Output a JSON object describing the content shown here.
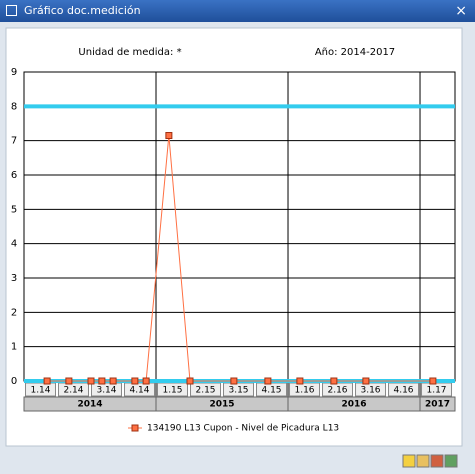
{
  "window": {
    "title": "Gráfico doc.medición",
    "close": "×"
  },
  "chart_data": {
    "type": "line",
    "header": [
      "Unidad de medida: *",
      "Año: 2014-2017"
    ],
    "series": [
      {
        "name": "134190  L13  Cupon - Nivel de Picadura L13",
        "color": "#ff7043",
        "x": [
          0.7,
          1.36,
          2.03,
          2.36,
          2.7,
          3.36,
          3.7,
          4.39,
          5.03,
          6.36,
          7.39,
          8.36,
          9.39,
          10.36,
          12.39
        ],
        "values": [
          0,
          0,
          0,
          0,
          0,
          0,
          0,
          7.15,
          0,
          0,
          0,
          0,
          0,
          0,
          0
        ]
      }
    ],
    "reference_lines": [
      {
        "value": 8,
        "color": "#33ccee"
      },
      {
        "value": 0,
        "color": "#33ccee"
      }
    ],
    "xlim": [
      0,
      13.06
    ],
    "xticks": [
      {
        "value": 0.5,
        "label": "1.14"
      },
      {
        "value": 1.5,
        "label": "2.14"
      },
      {
        "value": 2.5,
        "label": "3.14"
      },
      {
        "value": 3.5,
        "label": "4.14"
      },
      {
        "value": 4.5,
        "label": "1.15"
      },
      {
        "value": 5.5,
        "label": "2.15"
      },
      {
        "value": 6.5,
        "label": "3.15"
      },
      {
        "value": 7.5,
        "label": "4.15"
      },
      {
        "value": 8.5,
        "label": "1.16"
      },
      {
        "value": 9.5,
        "label": "2.16"
      },
      {
        "value": 10.5,
        "label": "3.16"
      },
      {
        "value": 11.5,
        "label": "4.16"
      },
      {
        "value": 12.5,
        "label": "1.17"
      }
    ],
    "x_groups": [
      {
        "label": "2014",
        "range": [
          0,
          4
        ]
      },
      {
        "label": "2015",
        "range": [
          4,
          8
        ]
      },
      {
        "label": "2016",
        "range": [
          8,
          12
        ]
      },
      {
        "label": "2017",
        "range": [
          12,
          13.06
        ]
      }
    ],
    "ylim": [
      0,
      9
    ],
    "yticks": [
      0,
      1,
      2,
      3,
      4,
      5,
      6,
      7,
      8,
      9
    ],
    "grid": true
  }
}
